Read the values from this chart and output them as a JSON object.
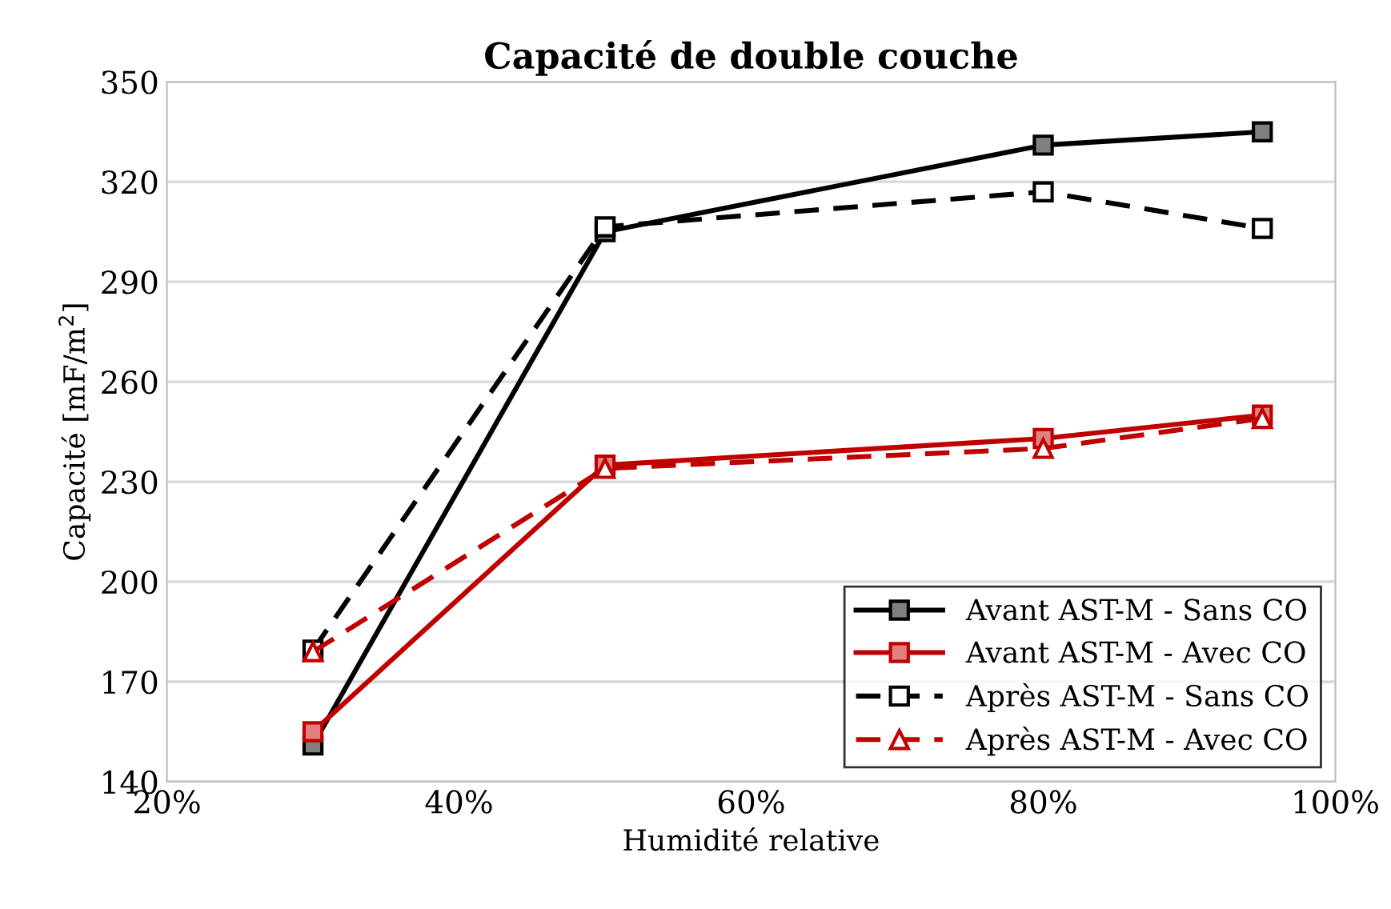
{
  "chart_data": {
    "type": "line",
    "title": "Capacité de double couche",
    "xlabel": "Humidité relative",
    "ylabel": "Capacité [mF/m$^{2}$]",
    "x": [
      30,
      50,
      80,
      95
    ],
    "series": [
      {
        "name": "Avant AST-M - Sans CO",
        "color": "#000000",
        "values": [
          151,
          305,
          331,
          335
        ],
        "marker": "square",
        "line_style": "solid"
      },
      {
        "name": "Avant AST-M - Avec CO",
        "color": "#c00000",
        "values": [
          155,
          235,
          243,
          250
        ],
        "marker": "square",
        "line_style": "solid"
      },
      {
        "name": "Après AST-M - Sans CO",
        "color": "#000000",
        "values": [
          179.5,
          306.5,
          317,
          306
        ],
        "marker": "square",
        "line_style": "dashed"
      },
      {
        "name": "Après AST-M - Avec CO",
        "color": "#c00000",
        "values": [
          179,
          234,
          240,
          249
        ],
        "marker": "triangle",
        "line_style": "dashed"
      }
    ],
    "xlim": [
      20,
      100
    ],
    "xticks": [
      {
        "value": 20,
        "label": "20%"
      },
      {
        "value": 40,
        "label": "40%"
      },
      {
        "value": 60,
        "label": "60%"
      },
      {
        "value": 80,
        "label": "80%"
      },
      {
        "value": 100,
        "label": "100%"
      }
    ],
    "ylim": [
      140,
      350
    ],
    "yticks": [
      140,
      170,
      200,
      230,
      260,
      290,
      320,
      350
    ],
    "grid": "y",
    "legend": "bottom right"
  }
}
